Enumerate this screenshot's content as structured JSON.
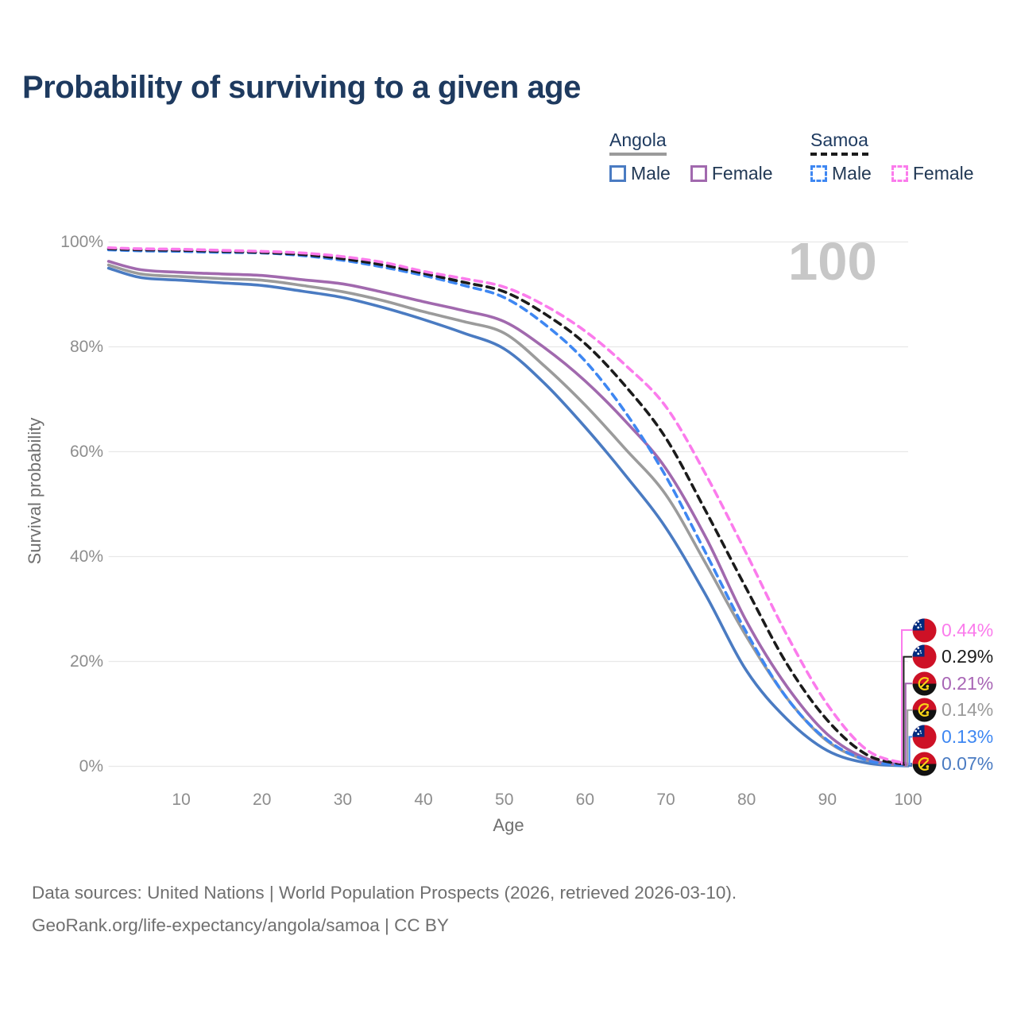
{
  "title": "Probability of surviving to a given age",
  "watermark_age": "100",
  "legend": {
    "groups": [
      {
        "label": "Angola",
        "line_style": "solid",
        "line_color": "#9b9b9b",
        "items": [
          {
            "label": "Male",
            "color": "#4a7bc2",
            "dashed": false
          },
          {
            "label": "Female",
            "color": "#a169ae",
            "dashed": false
          }
        ]
      },
      {
        "label": "Samoa",
        "line_style": "dashed",
        "line_color": "#1b1b1b",
        "items": [
          {
            "label": "Male",
            "color": "#3e87f2",
            "dashed": true
          },
          {
            "label": "Female",
            "color": "#fb7bec",
            "dashed": true
          }
        ]
      }
    ]
  },
  "axes": {
    "x_label": "Age",
    "y_label": "Survival probability",
    "x_ticks": [
      "10",
      "20",
      "30",
      "40",
      "50",
      "60",
      "70",
      "80",
      "90",
      "100"
    ],
    "y_ticks": [
      "100%",
      "80%",
      "60%",
      "40%",
      "20%",
      "0%"
    ]
  },
  "callouts": [
    {
      "flag": "samoa",
      "value": "0.44%",
      "color": "#fb7bec"
    },
    {
      "flag": "samoa",
      "value": "0.29%",
      "color": "#1b1b1b"
    },
    {
      "flag": "angola",
      "value": "0.21%",
      "color": "#a865b5"
    },
    {
      "flag": "angola",
      "value": "0.14%",
      "color": "#9b9b9b"
    },
    {
      "flag": "samoa",
      "value": "0.13%",
      "color": "#3e87f2"
    },
    {
      "flag": "angola",
      "value": "0.07%",
      "color": "#4a7bc2"
    }
  ],
  "footer": {
    "line1": "Data sources: United Nations | World Population Prospects (2026, retrieved 2026-03-10).",
    "line2": "GeoRank.org/life-expectancy/angola/samoa | CC BY"
  },
  "chart_data": {
    "type": "line",
    "title": "Probability of surviving to a given age",
    "xlabel": "Age",
    "ylabel": "Survival probability",
    "xlim": [
      1,
      100
    ],
    "ylim": [
      0,
      100
    ],
    "grid": "horizontal-only",
    "grid_color": "#e8e8e8",
    "legend_position": "top-right",
    "hovered_age": 100,
    "x": [
      1,
      5,
      10,
      15,
      20,
      25,
      30,
      35,
      40,
      45,
      50,
      55,
      60,
      65,
      70,
      75,
      80,
      85,
      90,
      95,
      100
    ],
    "series": [
      {
        "name": "Angola Male",
        "country": "angola",
        "sex": "male",
        "color": "#4a7bc2",
        "dashed": false,
        "values": [
          95.0,
          93.2,
          92.7,
          92.2,
          91.7,
          90.6,
          89.4,
          87.5,
          85.2,
          82.6,
          79.6,
          73.0,
          64.7,
          55.5,
          45.5,
          32.5,
          18.2,
          9.0,
          3.0,
          0.6,
          0.07
        ]
      },
      {
        "name": "Angola Total",
        "country": "angola",
        "sex": "total",
        "color": "#9b9b9b",
        "dashed": false,
        "values": [
          95.6,
          93.9,
          93.4,
          93.0,
          92.7,
          91.7,
          90.5,
          88.8,
          86.7,
          84.8,
          82.6,
          76.3,
          68.9,
          60.5,
          51.8,
          38.5,
          24.7,
          13.0,
          4.8,
          1.1,
          0.14
        ]
      },
      {
        "name": "Angola Female",
        "country": "angola",
        "sex": "female",
        "color": "#a169ae",
        "dashed": false,
        "values": [
          96.3,
          94.7,
          94.2,
          93.9,
          93.6,
          92.8,
          92.0,
          90.4,
          88.6,
          86.9,
          84.8,
          79.8,
          73.5,
          65.8,
          56.8,
          43.5,
          27.6,
          15.2,
          6.1,
          1.4,
          0.21
        ]
      },
      {
        "name": "Samoa Male",
        "country": "samoa",
        "sex": "male",
        "color": "#3e87f2",
        "dashed": true,
        "values": [
          98.5,
          98.3,
          98.2,
          98.0,
          97.9,
          97.4,
          96.5,
          95.2,
          93.6,
          91.7,
          89.4,
          84.3,
          77.3,
          67.5,
          55.3,
          40.5,
          25.5,
          13.0,
          5.0,
          1.1,
          0.13
        ]
      },
      {
        "name": "Samoa Total",
        "country": "samoa",
        "sex": "total",
        "color": "#1b1b1b",
        "dashed": true,
        "values": [
          98.7,
          98.5,
          98.4,
          98.2,
          98.0,
          97.6,
          96.8,
          95.6,
          94.0,
          92.3,
          90.5,
          86.3,
          80.6,
          72.5,
          62.6,
          48.5,
          33.8,
          19.5,
          8.8,
          2.1,
          0.29
        ]
      },
      {
        "name": "Samoa Female",
        "country": "samoa",
        "sex": "female",
        "color": "#fb7bec",
        "dashed": true,
        "values": [
          98.9,
          98.7,
          98.6,
          98.4,
          98.2,
          97.9,
          97.2,
          96.1,
          94.4,
          93.0,
          91.4,
          87.9,
          83.0,
          76.5,
          68.6,
          55.5,
          40.5,
          25.0,
          11.8,
          3.0,
          0.44
        ]
      }
    ],
    "endpoint_labels_at_age_100": [
      "0.44%",
      "0.29%",
      "0.21%",
      "0.14%",
      "0.13%",
      "0.07%"
    ]
  }
}
